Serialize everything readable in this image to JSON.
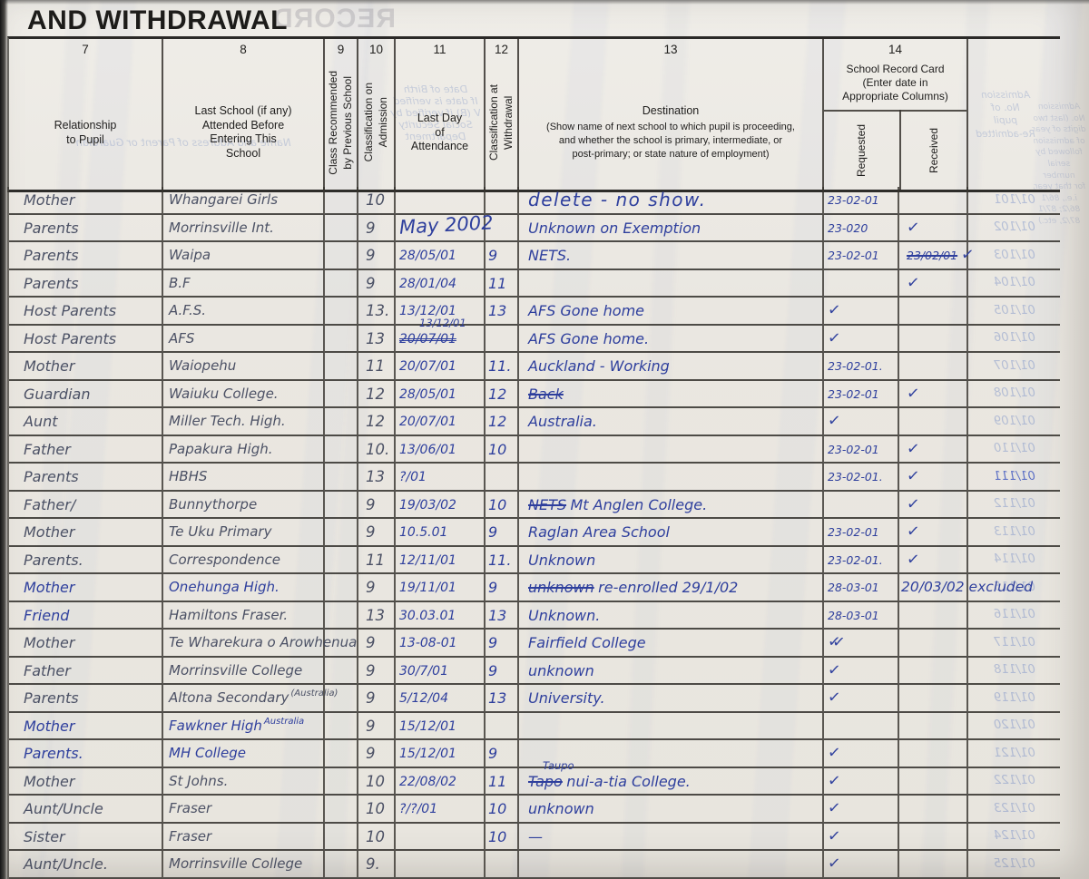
{
  "title": "AND WITHDRAWAL",
  "header": {
    "c7": {
      "num": "7",
      "label": "Relationship\nto Pupil"
    },
    "c8": {
      "num": "8",
      "label": "Last School (if any)\nAttended Before\nEntering This\nSchool"
    },
    "c9": {
      "num": "9",
      "label": "Class Recommended\nby Previous School"
    },
    "c10": {
      "num": "10",
      "label": "Classification on\nAdmission"
    },
    "c11": {
      "num": "11",
      "label": "Last Day\nof\nAttendance"
    },
    "c12": {
      "num": "12",
      "label": "Classification at\nWithdrawal"
    },
    "c13": {
      "num": "13",
      "label": "Destination",
      "sub": "(Show name of next school to which pupil is proceeding,\nand whether the school is primary, intermediate, or\npost-primary; or state nature of employment)"
    },
    "c14": {
      "num": "14",
      "label": "School Record Card\n(Enter date in\nAppropriate Columns)",
      "requested": "Requested",
      "received": "Received"
    }
  },
  "ghost": {
    "record": "RECORD",
    "parent_guardian": "Name and Address of Parent or Guardian",
    "date_of_birth": "Date of Birth\nIf date is verified\nV (B) if verified by\nSocial Security\nDepartment",
    "readmitted": "Admission\nNo. of\npupil\nRe-admitted",
    "admission_note": "Admission\nNo. (last two\ndigits of year\nof admission\nfollowed by\nserial number\nfor that year,\ni.e., 86/1\n86/2; 87/1\n87/2, etc.)"
  },
  "rows": [
    {
      "rel": "Mother",
      "school": "Whangarei Girls",
      "c10": "10",
      "lastday": "",
      "c12": "",
      "dest": "delete - no show.",
      "destBig": true,
      "req": "23-02-01",
      "rec": "",
      "ghost": "01/101"
    },
    {
      "rel": "Parents",
      "school": "Morrinsville Int.",
      "c10": "9",
      "lastday": "May 2002",
      "lastdayBig": true,
      "c12": "",
      "dest": "Unknown on Exemption",
      "req": "23-020",
      "rec": "✓",
      "ghost": "01/102"
    },
    {
      "rel": "Parents",
      "school": "Waipa",
      "c10": "9",
      "lastday": "28/05/01",
      "c12": "9",
      "dest": "NETS.",
      "req": "23-02-01",
      "recStrike": "23/02/01",
      "rec": "✓",
      "ghost": "01/103"
    },
    {
      "rel": "Parents",
      "school": "B.F",
      "c10": "9",
      "lastday": "28/01/04",
      "c12": "11",
      "dest": "",
      "req": "",
      "rec": "✓",
      "ghost": "01/104"
    },
    {
      "rel": "Host Parents",
      "school": "A.F.S.",
      "c10": "13.",
      "lastday": "13/12/01",
      "c12": "13",
      "dest": "AFS Gone home",
      "req": "✓",
      "rec": "",
      "ghost": "01/105"
    },
    {
      "rel": "Host Parents",
      "school": "AFS",
      "c10": "13",
      "lastdayStrike": "20/07/01",
      "lastdayAbove": "13/12/01",
      "lastday": "",
      "c12": "",
      "dest": "AFS Gone home.",
      "req": "✓",
      "rec": "",
      "ghost": "01/106"
    },
    {
      "rel": "Mother",
      "school": "Waiopehu",
      "c10": "11",
      "lastday": "20/07/01",
      "c12": "11.",
      "dest": "Auckland - Working",
      "req": "23-02-01.",
      "rec": "",
      "ghost": "01/107"
    },
    {
      "rel": "Guardian",
      "school": "Waiuku College.",
      "c10": "12",
      "lastday": "28/05/01",
      "c12": "12",
      "destStrike": "Back",
      "dest": "",
      "req": "23-02-01",
      "rec": "✓",
      "ghost": "01/108"
    },
    {
      "rel": "Aunt",
      "school": "Miller Tech. High.",
      "c10": "12",
      "lastday": "20/07/01",
      "c12": "12",
      "dest": "Australia.",
      "req": "✓",
      "rec": "",
      "ghost": "01/109"
    },
    {
      "rel": "Father",
      "school": "Papakura High.",
      "c10": "10.",
      "lastday": "13/06/01",
      "c12": "10",
      "dest": "",
      "req": "23-02-01",
      "rec": "✓",
      "ghost": "01/110"
    },
    {
      "rel": "Parents",
      "school": "HBHS",
      "c10": "13",
      "lastday": "?/01",
      "c12": "",
      "dest": "",
      "req": "23-02-01.",
      "rec": "✓",
      "ghost": "01/111",
      "ghostDark": true
    },
    {
      "rel": "Father/",
      "school": "Bunnythorpe",
      "c10": "9",
      "lastday": "19/03/02",
      "c12": "10",
      "destStrike": "NETS",
      "dest": "Mt Anglen College.",
      "req": "",
      "rec": "✓",
      "ghost": "01/112"
    },
    {
      "rel": "Mother",
      "school": "Te Uku Primary",
      "c10": "9",
      "lastday": "10.5.01",
      "c12": "9",
      "dest": "Raglan Area School",
      "req": "23-02-01",
      "rec": "✓",
      "ghost": "01/113"
    },
    {
      "rel": "Parents.",
      "school": "Correspondence",
      "c10": "11",
      "lastday": "12/11/01",
      "c12": "11.",
      "dest": "Unknown",
      "req": "23-02-01.",
      "rec": "✓",
      "ghost": "01/114"
    },
    {
      "rel": "Mother",
      "relBlue": true,
      "school": "Onehunga High.",
      "schoolBlue": true,
      "c10": "9",
      "lastday": "19/11/01",
      "c12": "9",
      "destStrike": "unknown",
      "dest": "re-enrolled 29/1/02",
      "req": "28-03-01",
      "rec": "",
      "extra": "20/03/02 excluded",
      "ghost": "01/115"
    },
    {
      "rel": "Friend",
      "relBlue": true,
      "school": "Hamiltons Fraser.",
      "c10": "13",
      "lastday": "30.03.01",
      "c12": "13",
      "dest": "Unknown.",
      "req": "28-03-01",
      "rec": "",
      "ghost": "01/116"
    },
    {
      "rel": "Mother",
      "school": "Te Wharekura o Arowhenua",
      "c10": "9",
      "lastday": "13-08-01",
      "c12": "9",
      "dest": "Fairfield College",
      "req": "✓✓",
      "rec": "",
      "ghost": "01/117"
    },
    {
      "rel": "Father",
      "school": "Morrinsville College",
      "c10": "9",
      "lastday": "30/7/01",
      "c12": "9",
      "dest": "unknown",
      "req": "✓",
      "rec": "",
      "ghost": "01/118"
    },
    {
      "rel": "Parents",
      "school": "Altona Secondary",
      "schoolNote": "(Australia)",
      "c10": "9",
      "lastday": "5/12/04",
      "c12": "13",
      "dest": "University.",
      "req": "✓",
      "rec": "",
      "ghost": "01/119"
    },
    {
      "rel": "Mother",
      "relBlue": true,
      "school": "Fawkner High",
      "schoolBlue": true,
      "schoolNote": "Australia",
      "c10": "9",
      "lastday": "15/12/01",
      "c12": "",
      "dest": "",
      "req": "",
      "rec": "",
      "ghost": "01/120"
    },
    {
      "rel": "Parents.",
      "relBlue": true,
      "school": "MH College",
      "schoolBlue": true,
      "c10": "9",
      "lastday": "15/12/01",
      "c12": "9",
      "dest": "",
      "req": "✓",
      "rec": "",
      "ghost": "01/121"
    },
    {
      "rel": "Mother",
      "school": "St Johns.",
      "c10": "10",
      "lastday": "22/08/02",
      "c12": "11",
      "destAbove": "Taupo",
      "destStrike": "Tapo",
      "dest": "nui-a-tia College.",
      "req": "✓",
      "rec": "",
      "ghost": "01/122"
    },
    {
      "rel": "Aunt/Uncle",
      "school": "Fraser",
      "c10": "10",
      "lastday": "?/?/01",
      "c12": "10",
      "dest": "unknown",
      "req": "✓",
      "rec": "",
      "ghost": "01/123"
    },
    {
      "rel": "Sister",
      "school": "Fraser",
      "c10": "10",
      "lastday": "",
      "c12": "10",
      "dest": "—",
      "req": "✓",
      "rec": "",
      "ghost": "01/124"
    },
    {
      "rel": "Aunt/Uncle.",
      "school": "Morrinsville College",
      "c10": "9.",
      "lastday": "",
      "c12": "",
      "dest": "",
      "req": "✓",
      "rec": "",
      "ghost": "01/125"
    }
  ]
}
